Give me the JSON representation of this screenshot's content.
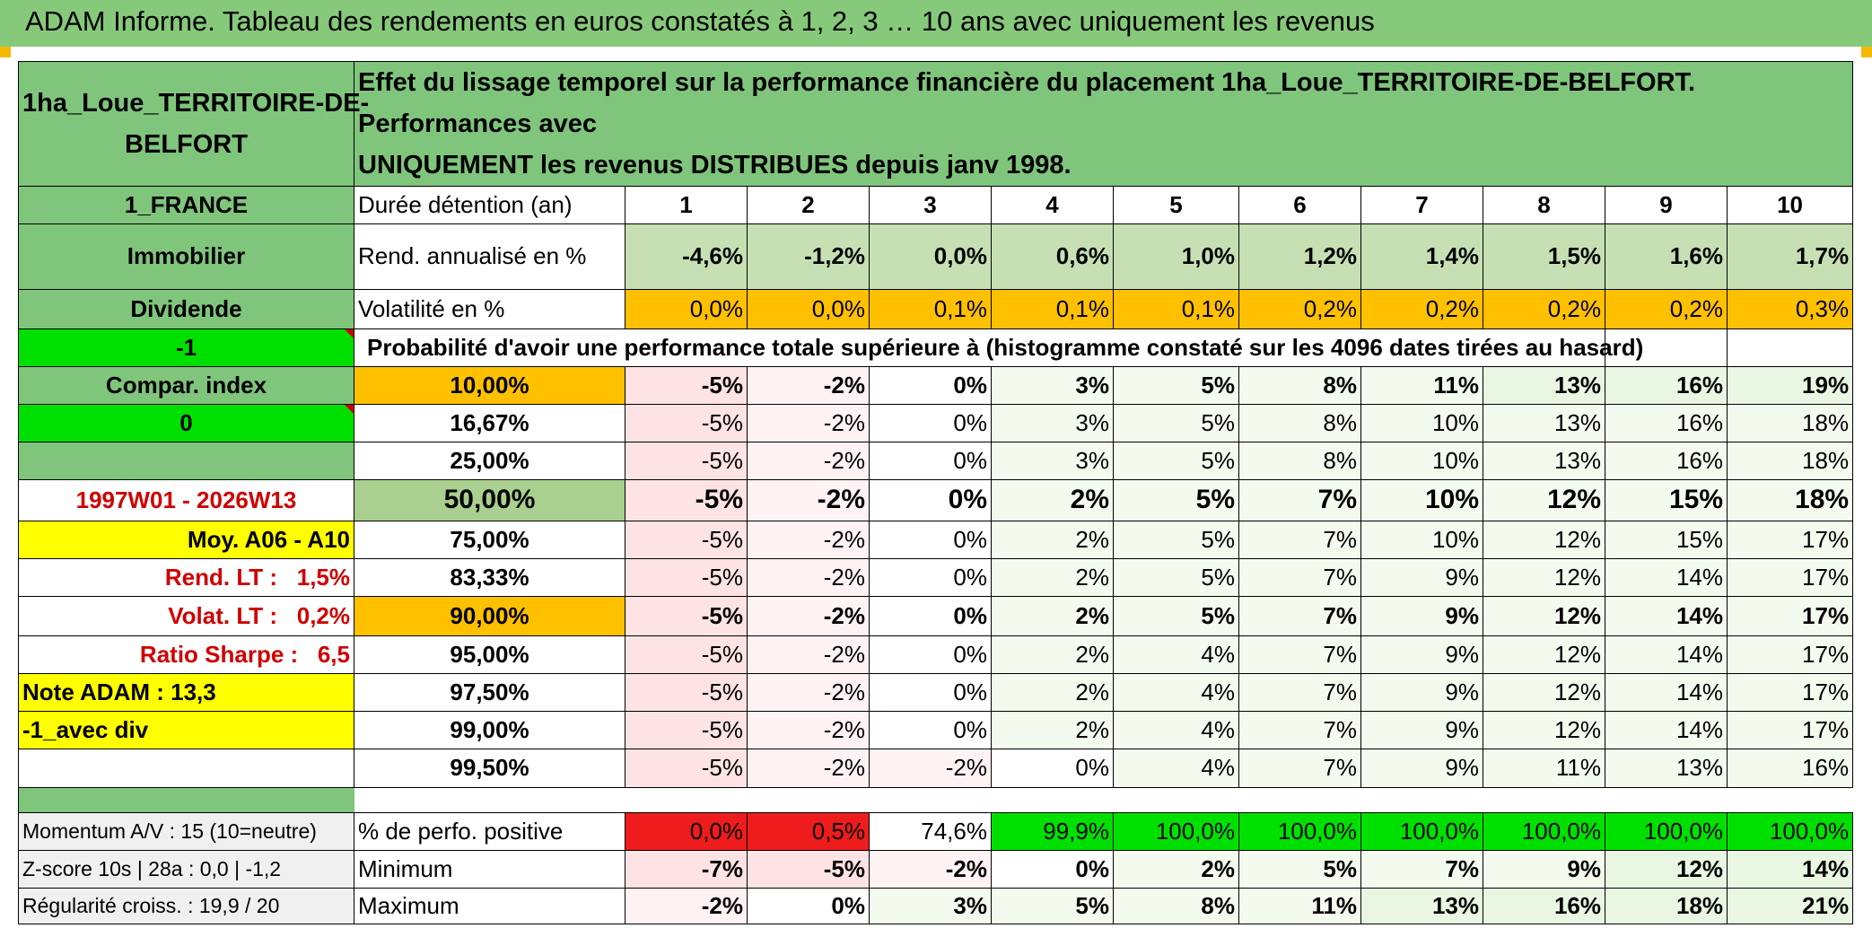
{
  "title": "ADAM Informe. Tableau des rendements en euros constatés à 1, 2, 3 … 10 ans avec uniquement les revenus",
  "header": {
    "fund_name_line1": "1ha_Loue_TERRITOIRE-DE-",
    "fund_name_line2": "BELFORT",
    "description_line1": "Effet du lissage temporel sur la performance financière du placement 1ha_Loue_TERRITOIRE-DE-BELFORT. Performances avec",
    "description_line2": "UNIQUEMENT les revenus DISTRIBUES depuis janv 1998."
  },
  "sidebar": {
    "country": "1_FRANCE",
    "category": "Immobilier",
    "mode": "Dividende",
    "flag": "-1",
    "compar_label": "Compar. index",
    "compar_value": "0",
    "period": "1997W01 - 2026W13",
    "avg_label": "Moy. A06 - A10",
    "rend_lt_label": "Rend. LT :",
    "rend_lt_value": "1,5%",
    "volat_lt_label": "Volat. LT :",
    "volat_lt_value": "0,2%",
    "sharpe_label": "Ratio Sharpe :",
    "sharpe_value": "6,5",
    "note_adam": "Note ADAM : 13,3",
    "avec_div": "-1_avec div",
    "momentum": "Momentum A/V : 15 (10=neutre)",
    "zscore": "Z-score 10s | 28a : 0,0 | -1,2",
    "regularite": "Régularité croiss. : 19,9 / 20"
  },
  "table": {
    "duration_label": "Durée détention (an)",
    "years": [
      "1",
      "2",
      "3",
      "4",
      "5",
      "6",
      "7",
      "8",
      "9",
      "10"
    ],
    "rend_label": "Rend. annualisé en %",
    "rend": [
      "-4,6%",
      "-1,2%",
      "0,0%",
      "0,6%",
      "1,0%",
      "1,2%",
      "1,4%",
      "1,5%",
      "1,6%",
      "1,7%"
    ],
    "vol_label": "Volatilité en %",
    "vol": [
      "0,0%",
      "0,0%",
      "0,1%",
      "0,1%",
      "0,1%",
      "0,2%",
      "0,2%",
      "0,2%",
      "0,2%",
      "0,3%"
    ],
    "prob_label": "Probabilité d'avoir une performance totale supérieure à (histogramme constaté sur les 4096 dates tirées au hasard)",
    "percentiles": [
      {
        "p": "10,00%",
        "v": [
          "-5%",
          "-2%",
          "0%",
          "3%",
          "5%",
          "8%",
          "11%",
          "13%",
          "16%",
          "19%"
        ]
      },
      {
        "p": "16,67%",
        "v": [
          "-5%",
          "-2%",
          "0%",
          "3%",
          "5%",
          "8%",
          "10%",
          "13%",
          "16%",
          "18%"
        ]
      },
      {
        "p": "25,00%",
        "v": [
          "-5%",
          "-2%",
          "0%",
          "3%",
          "5%",
          "8%",
          "10%",
          "13%",
          "16%",
          "18%"
        ]
      },
      {
        "p": "50,00%",
        "v": [
          "-5%",
          "-2%",
          "0%",
          "2%",
          "5%",
          "7%",
          "10%",
          "12%",
          "15%",
          "18%"
        ]
      },
      {
        "p": "75,00%",
        "v": [
          "-5%",
          "-2%",
          "0%",
          "2%",
          "5%",
          "7%",
          "10%",
          "12%",
          "15%",
          "17%"
        ]
      },
      {
        "p": "83,33%",
        "v": [
          "-5%",
          "-2%",
          "0%",
          "2%",
          "5%",
          "7%",
          "9%",
          "12%",
          "14%",
          "17%"
        ]
      },
      {
        "p": "90,00%",
        "v": [
          "-5%",
          "-2%",
          "0%",
          "2%",
          "5%",
          "7%",
          "9%",
          "12%",
          "14%",
          "17%"
        ]
      },
      {
        "p": "95,00%",
        "v": [
          "-5%",
          "-2%",
          "0%",
          "2%",
          "4%",
          "7%",
          "9%",
          "12%",
          "14%",
          "17%"
        ]
      },
      {
        "p": "97,50%",
        "v": [
          "-5%",
          "-2%",
          "0%",
          "2%",
          "4%",
          "7%",
          "9%",
          "12%",
          "14%",
          "17%"
        ]
      },
      {
        "p": "99,00%",
        "v": [
          "-5%",
          "-2%",
          "0%",
          "2%",
          "4%",
          "7%",
          "9%",
          "12%",
          "14%",
          "17%"
        ]
      },
      {
        "p": "99,50%",
        "v": [
          "-5%",
          "-2%",
          "-2%",
          "0%",
          "4%",
          "7%",
          "9%",
          "11%",
          "13%",
          "16%"
        ]
      }
    ],
    "positive_label": "% de perfo. positive",
    "positive": [
      "0,0%",
      "0,5%",
      "74,6%",
      "99,9%",
      "100,0%",
      "100,0%",
      "100,0%",
      "100,0%",
      "100,0%",
      "100,0%"
    ],
    "min_label": "Minimum",
    "min": [
      "-7%",
      "-5%",
      "-2%",
      "0%",
      "2%",
      "5%",
      "7%",
      "9%",
      "12%",
      "14%"
    ],
    "max_label": "Maximum",
    "max": [
      "-2%",
      "0%",
      "3%",
      "5%",
      "8%",
      "11%",
      "13%",
      "16%",
      "18%",
      "21%"
    ]
  },
  "colors": {
    "title_green": "#86c97a",
    "header_green": "#7fc57c",
    "orange": "#ffc000",
    "yellow": "#ffff00",
    "bright_green": "#00e000",
    "red": "#ee1c1c"
  }
}
